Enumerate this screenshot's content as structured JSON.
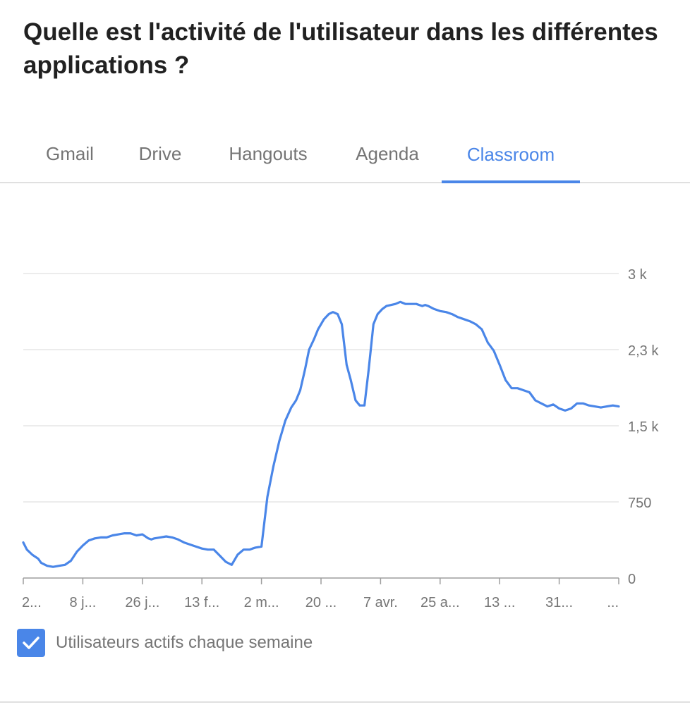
{
  "page": {
    "title": "Quelle est l'activité de l'utilisateur dans les différentes applications ?"
  },
  "tabs": [
    {
      "label": "Gmail",
      "active": false
    },
    {
      "label": "Drive",
      "active": false
    },
    {
      "label": "Hangouts",
      "active": false
    },
    {
      "label": "Agenda",
      "active": false
    },
    {
      "label": "Classroom",
      "active": true
    }
  ],
  "legend": {
    "label": "Utilisateurs actifs chaque semaine",
    "checked": true,
    "checkbox_icon": "check-icon"
  },
  "colors": {
    "accent": "#4a86e8",
    "series": "#4a86e8",
    "grid": "#e6e6e6",
    "axis": "#9e9e9e",
    "tab_text": "#757575"
  },
  "chart_data": {
    "type": "line",
    "title": "",
    "xlabel": "",
    "ylabel": "",
    "ylim": [
      0,
      3000
    ],
    "y_ticks": [
      {
        "value": 0,
        "label": "0"
      },
      {
        "value": 750,
        "label": "750"
      },
      {
        "value": 1500,
        "label": "1,5 k"
      },
      {
        "value": 2250,
        "label": "2,3 k"
      },
      {
        "value": 3000,
        "label": "3 k"
      }
    ],
    "x_range": [
      0,
      100
    ],
    "x_ticks": [
      {
        "value": 0,
        "label": "2..."
      },
      {
        "value": 10,
        "label": "8 j..."
      },
      {
        "value": 20,
        "label": "26 j..."
      },
      {
        "value": 30,
        "label": "13 f..."
      },
      {
        "value": 40,
        "label": "2 m..."
      },
      {
        "value": 50,
        "label": "20 ..."
      },
      {
        "value": 60,
        "label": "7 avr."
      },
      {
        "value": 70,
        "label": "25 a..."
      },
      {
        "value": 80,
        "label": "13 ..."
      },
      {
        "value": 90,
        "label": "31..."
      },
      {
        "value": 100,
        "label": "..."
      }
    ],
    "grid": true,
    "legend_position": "bottom-left",
    "series": [
      {
        "name": "Utilisateurs actifs chaque semaine",
        "x": [
          0,
          0.6,
          1.5,
          2.5,
          3,
          4,
          5,
          6,
          7,
          8,
          9,
          10,
          11,
          12,
          13,
          14,
          15,
          16,
          17,
          18,
          19,
          20,
          21,
          21.5,
          22,
          23,
          24,
          25,
          26,
          27,
          28,
          29,
          30,
          31,
          32,
          33,
          34,
          35,
          36,
          37,
          38,
          38.5,
          39,
          40,
          41,
          42,
          43,
          44,
          45,
          45.8,
          46.5,
          47.3,
          48,
          48.8,
          49.5,
          50.5,
          51.3,
          52,
          52.8,
          53.5,
          54.3,
          55,
          55.8,
          56.5,
          57.3,
          58,
          58.8,
          59.5,
          60.3,
          61,
          61.8,
          62.5,
          63.3,
          64.2,
          65,
          66,
          67,
          67.5,
          68,
          69,
          70,
          71,
          72,
          73,
          74,
          75,
          76,
          77,
          78,
          79,
          80,
          81,
          82,
          83,
          84,
          85,
          86,
          87,
          88,
          89,
          90,
          91,
          92,
          93,
          94,
          95,
          96,
          97,
          98,
          99,
          100
        ],
        "y": [
          350,
          280,
          230,
          190,
          150,
          120,
          110,
          120,
          130,
          170,
          260,
          320,
          370,
          390,
          400,
          400,
          420,
          430,
          440,
          440,
          420,
          430,
          390,
          380,
          390,
          400,
          410,
          400,
          380,
          350,
          330,
          310,
          290,
          280,
          280,
          220,
          160,
          130,
          230,
          280,
          280,
          290,
          300,
          310,
          800,
          1100,
          1350,
          1550,
          1680,
          1750,
          1850,
          2050,
          2250,
          2350,
          2450,
          2550,
          2600,
          2620,
          2600,
          2500,
          2100,
          1950,
          1750,
          1700,
          1700,
          2050,
          2500,
          2600,
          2650,
          2680,
          2690,
          2700,
          2720,
          2700,
          2700,
          2700,
          2680,
          2690,
          2680,
          2650,
          2630,
          2620,
          2600,
          2570,
          2550,
          2530,
          2500,
          2450,
          2320,
          2240,
          2100,
          1950,
          1870,
          1870,
          1850,
          1830,
          1750,
          1720,
          1690,
          1710,
          1670,
          1650,
          1670,
          1720,
          1720,
          1700,
          1690,
          1680,
          1690,
          1700,
          1690
        ]
      }
    ]
  }
}
